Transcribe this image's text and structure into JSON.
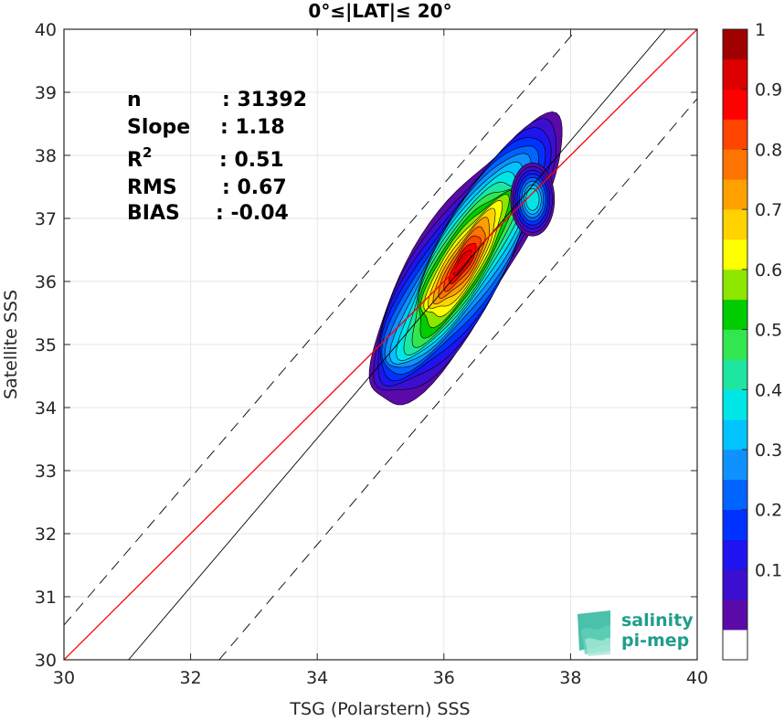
{
  "chart_data": {
    "type": "contour",
    "title": "0°≤|LAT|≤ 20°",
    "xlabel": "TSG (Polarstern) SSS",
    "ylabel": "Satellite SSS",
    "xlim": [
      30,
      40
    ],
    "ylim": [
      30,
      40
    ],
    "xticks": [
      "30",
      "32",
      "34",
      "36",
      "38",
      "40"
    ],
    "yticks": [
      "30",
      "31",
      "32",
      "33",
      "34",
      "35",
      "36",
      "37",
      "38",
      "39",
      "40"
    ],
    "grid": true,
    "stats": [
      {
        "label": "n",
        "value": ": 31392"
      },
      {
        "label": "Slope",
        "value": ": 1.18"
      },
      {
        "label": "R",
        "sup": "2",
        "value": ": 0.51"
      },
      {
        "label": "RMS",
        "value": ": 0.67"
      },
      {
        "label": "BIAS",
        "value": ": -0.04"
      }
    ],
    "reference_lines": {
      "one_to_one": {
        "color": "#ff0000",
        "x": [
          30,
          40
        ],
        "y": [
          30,
          40
        ]
      },
      "regression": {
        "color": "#000000",
        "x": [
          31.02,
          39.5
        ],
        "y": [
          30,
          40
        ]
      },
      "upper_band": {
        "style": "dashed",
        "x": [
          30,
          38.1
        ],
        "y": [
          30.55,
          40
        ]
      },
      "lower_band": {
        "style": "dashed",
        "x": [
          32.45,
          40
        ],
        "y": [
          30,
          38.9
        ]
      }
    },
    "density_contours": {
      "levels": [
        0.05,
        0.1,
        0.15,
        0.2,
        0.25,
        0.3,
        0.35,
        0.4,
        0.45,
        0.5,
        0.55,
        0.6,
        0.65,
        0.7,
        0.75,
        0.8,
        0.85,
        0.9,
        0.95
      ],
      "center_x": 36.3,
      "center_y": 36.3,
      "peak": 0.97,
      "secondary_center_x": 37.4,
      "secondary_center_y": 37.3
    },
    "colorbar": {
      "ticks": [
        "0.1",
        "0.2",
        "0.3",
        "0.4",
        "0.5",
        "0.6",
        "0.7",
        "0.8",
        "0.9",
        "1"
      ],
      "colors": [
        "#ffffff",
        "#5a0aa8",
        "#3c0ecf",
        "#1e14f0",
        "#0032ff",
        "#0064ff",
        "#0f91ff",
        "#00c3ff",
        "#00e6e6",
        "#1ee6a0",
        "#32e650",
        "#00cc00",
        "#8ce600",
        "#ffff00",
        "#ffd200",
        "#ffa000",
        "#ff7300",
        "#ff4600",
        "#ff0000",
        "#dc0000",
        "#a00000"
      ]
    },
    "logo": {
      "line1": "salinity",
      "line2": "pi-mep"
    }
  }
}
